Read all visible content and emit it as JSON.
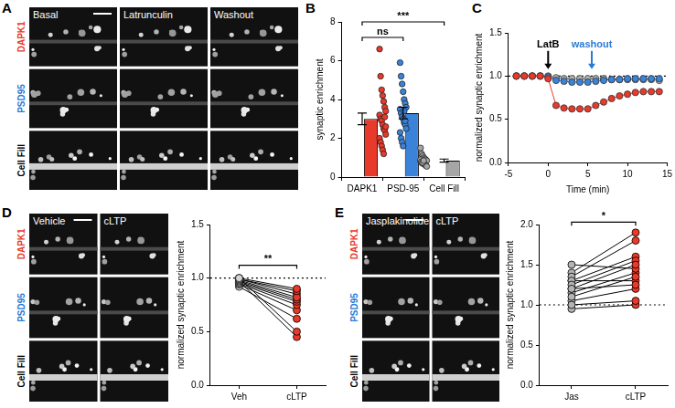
{
  "chart_data": [
    {
      "type": "bar",
      "title": "B",
      "categories": [
        "DAPK1",
        "PSD-95",
        "Cell Fill"
      ],
      "values": [
        3.0,
        3.3,
        0.85
      ],
      "errors": [
        0.3,
        0.3,
        0.08
      ],
      "colors": [
        "#e8392a",
        "#3a83d8",
        "#a6a6a6"
      ],
      "points": [
        [
          6.6,
          5.2,
          4.5,
          4.2,
          3.9,
          3.6,
          3.4,
          3.2,
          3.0,
          2.9,
          2.7,
          2.5,
          2.4,
          2.2,
          2.0,
          1.8,
          1.6,
          1.4,
          1.2,
          3.1,
          2.6
        ],
        [
          5.9,
          5.2,
          4.8,
          4.4,
          4.0,
          3.8,
          3.6,
          3.5,
          3.3,
          3.1,
          3.0,
          2.8,
          2.7,
          2.5,
          2.3,
          2.0,
          1.8,
          1.6,
          3.4,
          2.9
        ],
        [
          1.5,
          1.2,
          1.1,
          1.0,
          0.95,
          0.9,
          0.85,
          0.8,
          0.75,
          0.7,
          0.7,
          0.65,
          0.6,
          0.55,
          0.9,
          0.8,
          0.75,
          0.85
        ]
      ],
      "y_label": "synaptic enrichment",
      "ylim": [
        0,
        8
      ],
      "yticks": [
        0,
        2,
        4,
        6,
        8
      ],
      "brackets": [
        {
          "text": "ns",
          "between": [
            0,
            1
          ],
          "y": 7.2
        },
        {
          "text": "***",
          "between": [
            0,
            2
          ],
          "y": 8.0
        }
      ]
    },
    {
      "type": "line",
      "title": "C",
      "x": [
        -4,
        -3,
        -2,
        -1,
        0,
        1,
        2,
        3,
        4,
        5,
        6,
        7,
        8,
        9,
        10,
        11,
        12,
        13,
        14
      ],
      "series": [
        {
          "color": "#e8392a",
          "values": [
            1.0,
            1.0,
            1.0,
            1.0,
            0.97,
            0.66,
            0.63,
            0.62,
            0.62,
            0.62,
            0.66,
            0.7,
            0.74,
            0.77,
            0.79,
            0.81,
            0.82,
            0.82,
            0.82
          ]
        },
        {
          "color": "#3a83d8",
          "values": [
            1.0,
            1.0,
            1.0,
            1.0,
            0.99,
            0.95,
            0.94,
            0.93,
            0.93,
            0.93,
            0.94,
            0.95,
            0.96,
            0.96,
            0.97,
            0.97,
            0.97,
            0.97,
            0.97
          ]
        },
        {
          "color": "#b4b4b4",
          "values": [
            1.0,
            1.0,
            1.0,
            1.0,
            1.0,
            0.98,
            0.97,
            0.97,
            0.97,
            0.97,
            0.97,
            0.97,
            0.96,
            0.96,
            0.96,
            0.96,
            0.96,
            0.96,
            0.95
          ]
        }
      ],
      "marker": "circle",
      "x_label": "Time (min)",
      "y_label": "normalized synaptic enrichment",
      "xlim": [
        -5,
        15
      ],
      "xticks": [
        -5,
        0,
        5,
        10,
        15
      ],
      "ylim": [
        0,
        1.5
      ],
      "yticks": [
        {
          "value": 0,
          "label": "0.0"
        },
        {
          "value": 0.5,
          "label": "0.5"
        },
        {
          "value": 1,
          "label": "1.0"
        },
        {
          "value": 1.5,
          "label": "1.5"
        }
      ],
      "reference_y": 1,
      "arrows": [
        {
          "text": "LatB",
          "x": 0,
          "y": 1.08,
          "color": "#000000"
        },
        {
          "text": "washout",
          "x": 5.5,
          "y": 1.08,
          "color": "#2b7bd6"
        }
      ]
    },
    {
      "type": "paired",
      "categories": [
        "Veh",
        "cLTP"
      ],
      "colors": [
        "#d4d4d4",
        "#e8392a"
      ],
      "pairs": [
        [
          1.0,
          0.9
        ],
        [
          0.99,
          0.88
        ],
        [
          0.98,
          0.82
        ],
        [
          0.97,
          0.8
        ],
        [
          0.96,
          0.78
        ],
        [
          0.95,
          0.75
        ],
        [
          0.94,
          0.7
        ],
        [
          0.92,
          0.62
        ],
        [
          1.0,
          0.5
        ],
        [
          0.97,
          0.45
        ],
        [
          0.99,
          0.85
        ]
      ],
      "y_label": "normalized synaptic enrichment",
      "ylim": [
        0,
        1.5
      ],
      "yticks": [
        {
          "value": 0,
          "label": "0.0"
        },
        {
          "value": 0.5,
          "label": "0.5"
        },
        {
          "value": 1,
          "label": "1.0"
        },
        {
          "value": 1.5,
          "label": "1.5"
        }
      ],
      "reference_y": 1,
      "brackets": [
        {
          "text": "**",
          "between": [
            0,
            1
          ],
          "y": 1.12
        }
      ]
    },
    {
      "type": "paired",
      "categories": [
        "Jas",
        "cLTP"
      ],
      "colors": [
        "#b4b4b4",
        "#e8392a"
      ],
      "pairs": [
        [
          1.0,
          1.05
        ],
        [
          0.95,
          1.0
        ],
        [
          1.1,
          1.35
        ],
        [
          1.2,
          1.5
        ],
        [
          1.25,
          1.55
        ],
        [
          1.3,
          1.6
        ],
        [
          1.35,
          1.8
        ],
        [
          1.4,
          1.9
        ],
        [
          1.5,
          1.45
        ],
        [
          1.2,
          1.25
        ],
        [
          1.15,
          1.4
        ],
        [
          1.3,
          1.3
        ],
        [
          1.05,
          1.2
        ]
      ],
      "y_label": "normalized synaptic enrichment",
      "ylim": [
        0,
        2
      ],
      "yticks": [
        {
          "value": 0,
          "label": "0.0"
        },
        {
          "value": 0.5,
          "label": "0.5"
        },
        {
          "value": 1,
          "label": "1.0"
        },
        {
          "value": 1.5,
          "label": "1.5"
        },
        {
          "value": 2,
          "label": "2.0"
        }
      ],
      "reference_y": 1,
      "brackets": [
        {
          "text": "*",
          "between": [
            0,
            1
          ],
          "y": 2.03
        }
      ]
    }
  ],
  "images": [
    {
      "panel": "A",
      "columns": [
        "Basal",
        "Latrunculin",
        "Washout"
      ],
      "rows": [
        {
          "label": "DAPK1",
          "color": "#e8392a"
        },
        {
          "label": "PSD95",
          "color": "#2b7bd6"
        },
        {
          "label": "Cell Fill",
          "color": "#000000"
        }
      ]
    },
    {
      "panel": "D",
      "columns": [
        "Vehicle",
        "cLTP"
      ],
      "rows": [
        {
          "label": "DAPK1",
          "color": "#e8392a"
        },
        {
          "label": "PSD95",
          "color": "#2b7bd6"
        },
        {
          "label": "Cell Fill",
          "color": "#000000"
        }
      ]
    },
    {
      "panel": "E",
      "columns": [
        "Jasplakinolide",
        "cLTP"
      ],
      "rows": [
        {
          "label": "DAPK1",
          "color": "#e8392a"
        },
        {
          "label": "PSD95",
          "color": "#2b7bd6"
        },
        {
          "label": "Cell Fill",
          "color": "#000000"
        }
      ]
    }
  ]
}
